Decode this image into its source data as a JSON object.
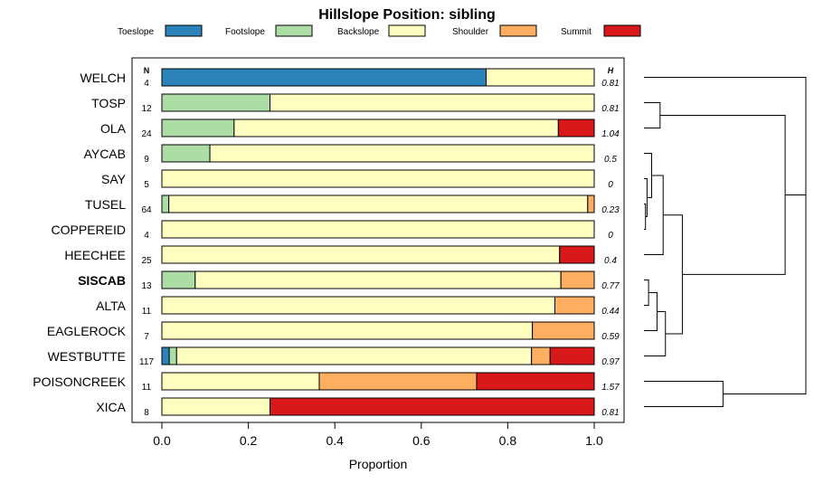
{
  "chart_data": {
    "type": "bar",
    "stacked": "horizontal-proportion",
    "title": "Hillslope Position: sibling",
    "xlabel": "Proportion",
    "xlim": [
      0,
      1
    ],
    "x_ticks": [
      0.0,
      0.2,
      0.4,
      0.6,
      0.8,
      1.0
    ],
    "x_tick_labels": [
      "0.0",
      "0.2",
      "0.4",
      "0.6",
      "0.8",
      "1.0"
    ],
    "n_header": "N",
    "h_header": "H",
    "legend_position": "top",
    "series": [
      {
        "name": "Toeslope",
        "color": "#2b83ba"
      },
      {
        "name": "Footslope",
        "color": "#abdda4"
      },
      {
        "name": "Backslope",
        "color": "#ffffbf"
      },
      {
        "name": "Shoulder",
        "color": "#fdae61"
      },
      {
        "name": "Summit",
        "color": "#d7191c"
      }
    ],
    "rows": [
      {
        "label": "WELCH",
        "n": "4",
        "h": "0.81",
        "bold": false,
        "values": [
          0.75,
          0,
          0.25,
          0,
          0
        ]
      },
      {
        "label": "TOSP",
        "n": "12",
        "h": "0.81",
        "bold": false,
        "values": [
          0,
          0.25,
          0.75,
          0,
          0
        ]
      },
      {
        "label": "OLA",
        "n": "24",
        "h": "1.04",
        "bold": false,
        "values": [
          0,
          0.167,
          0.75,
          0,
          0.083
        ]
      },
      {
        "label": "AYCAB",
        "n": "9",
        "h": "0.5",
        "bold": false,
        "values": [
          0,
          0.111,
          0.889,
          0,
          0
        ]
      },
      {
        "label": "SAY",
        "n": "5",
        "h": "0",
        "bold": false,
        "values": [
          0,
          0,
          1,
          0,
          0
        ]
      },
      {
        "label": "TUSEL",
        "n": "64",
        "h": "0.23",
        "bold": false,
        "values": [
          0,
          0.016,
          0.969,
          0.015,
          0
        ]
      },
      {
        "label": "COPPEREID",
        "n": "4",
        "h": "0",
        "bold": false,
        "values": [
          0,
          0,
          1,
          0,
          0
        ]
      },
      {
        "label": "HEECHEE",
        "n": "25",
        "h": "0.4",
        "bold": false,
        "values": [
          0,
          0,
          0.92,
          0,
          0.08
        ]
      },
      {
        "label": "SISCAB",
        "n": "13",
        "h": "0.77",
        "bold": true,
        "values": [
          0,
          0.077,
          0.846,
          0.077,
          0
        ]
      },
      {
        "label": "ALTA",
        "n": "11",
        "h": "0.44",
        "bold": false,
        "values": [
          0,
          0,
          0.909,
          0.091,
          0
        ]
      },
      {
        "label": "EAGLEROCK",
        "n": "7",
        "h": "0.59",
        "bold": false,
        "values": [
          0,
          0,
          0.857,
          0.143,
          0
        ]
      },
      {
        "label": "WESTBUTTE",
        "n": "117",
        "h": "0.97",
        "bold": false,
        "values": [
          0.017,
          0.017,
          0.821,
          0.043,
          0.102
        ]
      },
      {
        "label": "POISONCREEK",
        "n": "11",
        "h": "1.57",
        "bold": false,
        "values": [
          0,
          0,
          0.364,
          0.364,
          0.272
        ]
      },
      {
        "label": "XICA",
        "n": "8",
        "h": "0.81",
        "bold": false,
        "values": [
          0,
          0,
          0.25,
          0,
          0.75
        ]
      }
    ],
    "dendrogram": {
      "merges": [
        {
          "left": "OLA",
          "right": "TOSP",
          "height": 0.21
        },
        {
          "left": "COPPEREID",
          "right": "TUSEL",
          "height": 0.02
        },
        {
          "left": "SAY",
          "right": "m1",
          "height": 0.04
        },
        {
          "left": "AYCAB",
          "right": "m2",
          "height": 0.1
        },
        {
          "left": "HEECHEE",
          "right": "m3",
          "height": 0.25
        },
        {
          "left": "SISCAB",
          "right": "ALTA",
          "height": 0.06
        },
        {
          "left": "EAGLEROCK",
          "right": "m5",
          "height": 0.17
        },
        {
          "left": "WESTBUTTE",
          "right": "m6",
          "height": 0.28
        },
        {
          "left": "m4",
          "right": "m7",
          "height": 0.5
        },
        {
          "left": "m0",
          "right": "m8",
          "height": 1.84
        },
        {
          "left": "POISONCREEK",
          "right": "XICA",
          "height": 1.03
        },
        {
          "left": "WELCH",
          "right": "m9",
          "height": 2.11
        },
        {
          "left": "m11",
          "right": "m10",
          "height": 2.11
        }
      ]
    }
  }
}
